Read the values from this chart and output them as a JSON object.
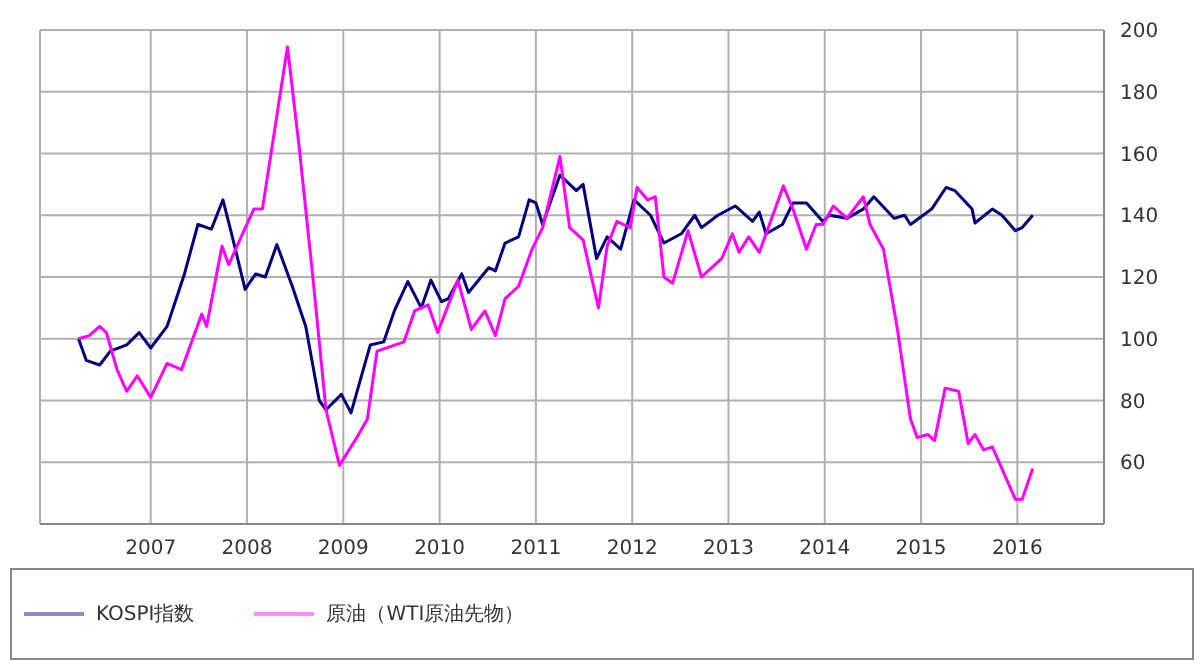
{
  "chart_data": {
    "type": "line",
    "xlim": [
      2005.85,
      2016.9
    ],
    "xticks": [
      2007,
      2008,
      2009,
      2010,
      2011,
      2012,
      2013,
      2014,
      2015,
      2016
    ],
    "ylim": [
      40,
      200
    ],
    "yticks": [
      60,
      80,
      100,
      120,
      140,
      160,
      180,
      200
    ],
    "grid": true,
    "legend": "bottom",
    "marker": "none",
    "line_style": "solid",
    "series": [
      {
        "name": "KOSPI指数",
        "color": "#000080",
        "x": [
          2006.25,
          2006.33,
          2006.47,
          2006.58,
          2006.75,
          2006.88,
          2007.0,
          2007.17,
          2007.35,
          2007.49,
          2007.63,
          2007.75,
          2007.84,
          2007.98,
          2008.09,
          2008.19,
          2008.31,
          2008.47,
          2008.61,
          2008.75,
          2008.82,
          2008.98,
          2009.08,
          2009.28,
          2009.42,
          2009.53,
          2009.67,
          2009.81,
          2009.91,
          2010.02,
          2010.09,
          2010.23,
          2010.3,
          2010.51,
          2010.58,
          2010.68,
          2010.82,
          2010.93,
          2011.0,
          2011.07,
          2011.25,
          2011.42,
          2011.49,
          2011.63,
          2011.74,
          2011.88,
          2012.02,
          2012.19,
          2012.33,
          2012.51,
          2012.65,
          2012.72,
          2012.89,
          2013.07,
          2013.25,
          2013.32,
          2013.39,
          2013.56,
          2013.67,
          2013.81,
          2013.98,
          2014.05,
          2014.23,
          2014.4,
          2014.51,
          2014.72,
          2014.83,
          2014.89,
          2015.11,
          2015.26,
          2015.35,
          2015.53,
          2015.56,
          2015.74,
          2015.84,
          2015.98,
          2016.05,
          2016.16
        ],
        "values": [
          100,
          93,
          91.5,
          96,
          98,
          102,
          97,
          104,
          121,
          137,
          135.5,
          145,
          134,
          116,
          121,
          120,
          130.5,
          117,
          104,
          80,
          77,
          82,
          76,
          98,
          99,
          109,
          118.5,
          110,
          119,
          112,
          113,
          121,
          115,
          123,
          122,
          131,
          133,
          145,
          144,
          137,
          153,
          148,
          150,
          126,
          133,
          129,
          145,
          140,
          131,
          134,
          140,
          136,
          140,
          143,
          138,
          141,
          134,
          137,
          144,
          144,
          138,
          140,
          139,
          142,
          146,
          139,
          140,
          137,
          142,
          149,
          148,
          142,
          137.5,
          142,
          140,
          135,
          136,
          140
        ]
      },
      {
        "name": "原油（WTI原油先物）",
        "color": "#ff00ff",
        "x": [
          2006.25,
          2006.36,
          2006.47,
          2006.54,
          2006.65,
          2006.75,
          2006.86,
          2007.0,
          2007.17,
          2007.32,
          2007.53,
          2007.58,
          2007.74,
          2007.81,
          2007.91,
          2008.07,
          2008.16,
          2008.42,
          2008.54,
          2008.68,
          2008.82,
          2008.96,
          2009.14,
          2009.25,
          2009.35,
          2009.63,
          2009.74,
          2009.88,
          2009.98,
          2010.19,
          2010.33,
          2010.47,
          2010.58,
          2010.68,
          2010.82,
          2010.96,
          2011.07,
          2011.25,
          2011.35,
          2011.49,
          2011.65,
          2011.74,
          2011.84,
          2011.98,
          2012.05,
          2012.16,
          2012.24,
          2012.33,
          2012.42,
          2012.58,
          2012.72,
          2012.93,
          2013.04,
          2013.11,
          2013.21,
          2013.32,
          2013.57,
          2013.67,
          2013.81,
          2013.91,
          2013.98,
          2014.09,
          2014.23,
          2014.4,
          2014.47,
          2014.61,
          2014.75,
          2014.89,
          2014.96,
          2015.07,
          2015.14,
          2015.25,
          2015.39,
          2015.49,
          2015.56,
          2015.65,
          2015.74,
          2015.98,
          2016.05,
          2016.16
        ],
        "values": [
          100,
          101,
          104,
          102,
          90,
          83,
          88,
          81,
          92,
          90,
          108,
          104,
          130,
          124,
          131,
          142,
          142,
          194.5,
          162.5,
          121,
          77,
          59,
          68,
          74,
          96,
          99,
          109,
          111,
          102,
          119,
          103,
          109,
          101,
          113,
          117,
          129,
          136,
          159,
          136,
          132,
          110,
          130,
          138,
          136,
          149,
          145,
          146,
          120,
          118,
          135,
          120,
          126,
          134,
          128,
          133,
          128,
          149.5,
          142,
          129,
          137,
          137,
          143,
          139,
          146,
          137,
          129,
          104,
          74,
          68,
          69,
          67,
          84,
          83,
          66,
          69,
          64,
          65,
          48,
          48,
          58
        ]
      }
    ]
  }
}
